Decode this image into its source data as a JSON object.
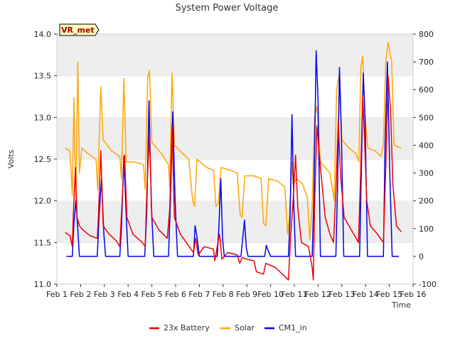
{
  "chart_data": {
    "type": "line",
    "title": "System Power Voltage",
    "xlabel": "Time",
    "ylabel": "Volts",
    "badge": "VR_met",
    "x_ticks": [
      "Feb 1",
      "Feb 2",
      "Feb 3",
      "Feb 4",
      "Feb 5",
      "Feb 6",
      "Feb 7",
      "Feb 8",
      "Feb 9",
      "Feb 10",
      "Feb 11",
      "Feb 12",
      "Feb 13",
      "Feb 14",
      "Feb 15",
      "Feb 16"
    ],
    "xlim": [
      1,
      16
    ],
    "ylim_left": [
      11.0,
      14.0
    ],
    "y_ticks_left": [
      "11.0",
      "11.5",
      "12.0",
      "12.5",
      "13.0",
      "13.5",
      "14.0"
    ],
    "ylim_right": [
      -100,
      800
    ],
    "y_ticks_right": [
      "-100",
      "0",
      "100",
      "200",
      "300",
      "400",
      "500",
      "600",
      "700",
      "800"
    ],
    "grid": "horizontal bands",
    "legend_position": "bottom-center",
    "colors": {
      "battery": "#ee0000",
      "solar": "#ffa500",
      "cm1": "#0000ee",
      "band": "#eeeeee"
    },
    "series": [
      {
        "name": "23x Battery",
        "axis": "left",
        "color": "#ee0000",
        "points": [
          [
            1.35,
            11.62
          ],
          [
            1.55,
            11.58
          ],
          [
            1.65,
            11.45
          ],
          [
            1.7,
            11.9
          ],
          [
            1.78,
            12.4
          ],
          [
            1.85,
            11.8
          ],
          [
            1.95,
            11.7
          ],
          [
            2.1,
            11.65
          ],
          [
            2.4,
            11.58
          ],
          [
            2.7,
            11.55
          ],
          [
            2.75,
            11.8
          ],
          [
            2.85,
            12.6
          ],
          [
            2.95,
            11.7
          ],
          [
            3.2,
            11.6
          ],
          [
            3.5,
            11.52
          ],
          [
            3.65,
            11.45
          ],
          [
            3.75,
            12.0
          ],
          [
            3.85,
            12.55
          ],
          [
            3.95,
            11.8
          ],
          [
            4.2,
            11.6
          ],
          [
            4.6,
            11.5
          ],
          [
            4.72,
            11.45
          ],
          [
            4.8,
            12.2
          ],
          [
            4.9,
            12.8
          ],
          [
            5.0,
            11.8
          ],
          [
            5.3,
            11.65
          ],
          [
            5.65,
            11.55
          ],
          [
            5.75,
            11.9
          ],
          [
            5.85,
            12.9
          ],
          [
            5.95,
            11.8
          ],
          [
            6.2,
            11.6
          ],
          [
            6.5,
            11.48
          ],
          [
            6.75,
            11.38
          ],
          [
            6.85,
            11.55
          ],
          [
            6.95,
            11.35
          ],
          [
            7.2,
            11.45
          ],
          [
            7.6,
            11.42
          ],
          [
            7.65,
            11.28
          ],
          [
            7.75,
            11.45
          ],
          [
            7.85,
            11.6
          ],
          [
            7.95,
            11.3
          ],
          [
            8.2,
            11.38
          ],
          [
            8.6,
            11.35
          ],
          [
            8.7,
            11.25
          ],
          [
            8.8,
            11.32
          ],
          [
            9.0,
            11.3
          ],
          [
            9.3,
            11.28
          ],
          [
            9.4,
            11.15
          ],
          [
            9.7,
            11.12
          ],
          [
            9.8,
            11.25
          ],
          [
            10.2,
            11.2
          ],
          [
            10.75,
            11.05
          ],
          [
            10.85,
            11.6
          ],
          [
            10.95,
            12.0
          ],
          [
            11.05,
            12.55
          ],
          [
            11.15,
            11.9
          ],
          [
            11.3,
            11.5
          ],
          [
            11.6,
            11.45
          ],
          [
            11.75,
            11.2
          ],
          [
            11.8,
            11.05
          ],
          [
            11.85,
            11.9
          ],
          [
            11.95,
            12.9
          ],
          [
            12.1,
            12.4
          ],
          [
            12.3,
            11.8
          ],
          [
            12.5,
            11.6
          ],
          [
            12.65,
            11.5
          ],
          [
            12.75,
            12.1
          ],
          [
            12.85,
            12.95
          ],
          [
            12.95,
            12.3
          ],
          [
            13.1,
            11.8
          ],
          [
            13.4,
            11.65
          ],
          [
            13.7,
            11.5
          ],
          [
            13.8,
            12.4
          ],
          [
            13.88,
            13.25
          ],
          [
            13.95,
            12.8
          ],
          [
            14.05,
            12.0
          ],
          [
            14.2,
            11.7
          ],
          [
            14.5,
            11.6
          ],
          [
            14.75,
            11.5
          ],
          [
            14.85,
            12.4
          ],
          [
            14.95,
            13.5
          ],
          [
            15.05,
            13.1
          ],
          [
            15.15,
            12.2
          ],
          [
            15.3,
            11.7
          ],
          [
            15.5,
            11.63
          ]
        ]
      },
      {
        "name": "Solar",
        "axis": "right",
        "color": "#ffa500",
        "points": [
          [
            1.35,
            390
          ],
          [
            1.55,
            380
          ],
          [
            1.65,
            220
          ],
          [
            1.72,
            570
          ],
          [
            1.8,
            180
          ],
          [
            1.88,
            700
          ],
          [
            1.95,
            300
          ],
          [
            2.05,
            390
          ],
          [
            2.3,
            370
          ],
          [
            2.65,
            350
          ],
          [
            2.72,
            240
          ],
          [
            2.85,
            610
          ],
          [
            2.95,
            420
          ],
          [
            3.3,
            380
          ],
          [
            3.65,
            360
          ],
          [
            3.72,
            280
          ],
          [
            3.82,
            640
          ],
          [
            3.92,
            340
          ],
          [
            4.3,
            340
          ],
          [
            4.65,
            330
          ],
          [
            4.72,
            240
          ],
          [
            4.82,
            640
          ],
          [
            4.9,
            670
          ],
          [
            5.0,
            410
          ],
          [
            5.4,
            370
          ],
          [
            5.7,
            330
          ],
          [
            5.75,
            250
          ],
          [
            5.85,
            660
          ],
          [
            5.95,
            400
          ],
          [
            6.3,
            370
          ],
          [
            6.55,
            350
          ],
          [
            6.72,
            200
          ],
          [
            6.8,
            180
          ],
          [
            6.9,
            350
          ],
          [
            7.3,
            320
          ],
          [
            7.6,
            310
          ],
          [
            7.7,
            180
          ],
          [
            7.8,
            190
          ],
          [
            7.92,
            320
          ],
          [
            8.3,
            310
          ],
          [
            8.6,
            300
          ],
          [
            8.72,
            150
          ],
          [
            8.8,
            140
          ],
          [
            8.92,
            290
          ],
          [
            9.3,
            290
          ],
          [
            9.6,
            280
          ],
          [
            9.7,
            120
          ],
          [
            9.8,
            110
          ],
          [
            9.92,
            280
          ],
          [
            10.3,
            270
          ],
          [
            10.6,
            250
          ],
          [
            10.72,
            80
          ],
          [
            10.8,
            150
          ],
          [
            10.9,
            340
          ],
          [
            10.95,
            260
          ],
          [
            11.1,
            280
          ],
          [
            11.35,
            260
          ],
          [
            11.55,
            210
          ],
          [
            11.65,
            60
          ],
          [
            11.75,
            180
          ],
          [
            11.85,
            500
          ],
          [
            11.95,
            540
          ],
          [
            12.1,
            340
          ],
          [
            12.3,
            320
          ],
          [
            12.5,
            300
          ],
          [
            12.68,
            200
          ],
          [
            12.78,
            600
          ],
          [
            12.88,
            650
          ],
          [
            13.0,
            420
          ],
          [
            13.3,
            390
          ],
          [
            13.6,
            370
          ],
          [
            13.72,
            340
          ],
          [
            13.8,
            680
          ],
          [
            13.88,
            720
          ],
          [
            13.98,
            500
          ],
          [
            14.1,
            390
          ],
          [
            14.4,
            380
          ],
          [
            14.65,
            360
          ],
          [
            14.75,
            400
          ],
          [
            14.85,
            700
          ],
          [
            14.95,
            770
          ],
          [
            15.1,
            700
          ],
          [
            15.2,
            400
          ],
          [
            15.5,
            390
          ]
        ]
      },
      {
        "name": "CM1_in",
        "axis": "right",
        "color": "#0000ee",
        "points": [
          [
            1.4,
            0
          ],
          [
            1.65,
            0
          ],
          [
            1.72,
            120
          ],
          [
            1.8,
            200
          ],
          [
            1.88,
            100
          ],
          [
            1.95,
            0
          ],
          [
            2.4,
            0
          ],
          [
            2.7,
            0
          ],
          [
            2.78,
            150
          ],
          [
            2.88,
            280
          ],
          [
            2.98,
            80
          ],
          [
            3.05,
            0
          ],
          [
            3.65,
            0
          ],
          [
            3.72,
            100
          ],
          [
            3.82,
            360
          ],
          [
            3.92,
            150
          ],
          [
            4.0,
            0
          ],
          [
            4.7,
            0
          ],
          [
            4.78,
            150
          ],
          [
            4.88,
            560
          ],
          [
            4.98,
            180
          ],
          [
            5.08,
            0
          ],
          [
            5.7,
            0
          ],
          [
            5.78,
            200
          ],
          [
            5.88,
            520
          ],
          [
            5.98,
            200
          ],
          [
            6.08,
            0
          ],
          [
            6.75,
            0
          ],
          [
            6.82,
            110
          ],
          [
            6.9,
            70
          ],
          [
            7.0,
            0
          ],
          [
            7.75,
            0
          ],
          [
            7.82,
            100
          ],
          [
            7.9,
            280
          ],
          [
            7.98,
            60
          ],
          [
            8.05,
            0
          ],
          [
            8.75,
            0
          ],
          [
            8.82,
            60
          ],
          [
            8.9,
            130
          ],
          [
            8.98,
            30
          ],
          [
            9.05,
            0
          ],
          [
            9.75,
            0
          ],
          [
            9.82,
            40
          ],
          [
            9.9,
            20
          ],
          [
            10.0,
            0
          ],
          [
            10.75,
            0
          ],
          [
            10.82,
            140
          ],
          [
            10.9,
            510
          ],
          [
            10.98,
            180
          ],
          [
            11.05,
            0
          ],
          [
            11.75,
            0
          ],
          [
            11.82,
            200
          ],
          [
            11.92,
            740
          ],
          [
            12.0,
            560
          ],
          [
            12.1,
            0
          ],
          [
            12.75,
            0
          ],
          [
            12.82,
            250
          ],
          [
            12.9,
            680
          ],
          [
            12.98,
            450
          ],
          [
            13.08,
            0
          ],
          [
            13.75,
            0
          ],
          [
            13.82,
            300
          ],
          [
            13.9,
            660
          ],
          [
            13.98,
            500
          ],
          [
            14.08,
            0
          ],
          [
            14.75,
            0
          ],
          [
            14.82,
            400
          ],
          [
            14.92,
            700
          ],
          [
            15.02,
            300
          ],
          [
            15.12,
            0
          ],
          [
            15.4,
            0
          ]
        ]
      }
    ]
  }
}
